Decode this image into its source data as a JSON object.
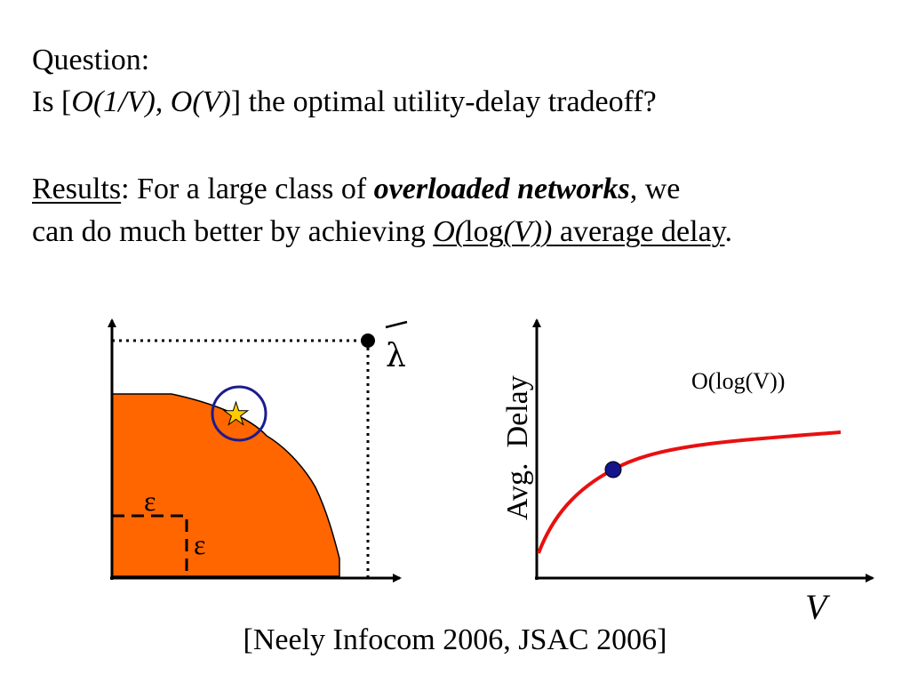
{
  "text": {
    "question_label": "Question:",
    "q_is": "Is [",
    "q_expr": "O(1/V), O(V)",
    "q_rest": "] the optimal utility-delay tradeoff?",
    "results_label": "Results",
    "results_colon": ":  For a large class of ",
    "results_emph": "overloaded networks",
    "results_end": ", we",
    "line2_start": "can do much better by achieving ",
    "line2_o": "O(",
    "line2_log": "log",
    "line2_v": "(V))",
    "line2_avg": " average delay",
    "line2_period": "."
  },
  "left_diagram": {
    "lambda_label": "λ",
    "epsilon_1": "ε",
    "epsilon_2": "ε",
    "region_color": "#ff6600",
    "circle_color": "#1c1c8c",
    "star_color": "#ffcc00"
  },
  "right_diagram": {
    "ylabel": "Avg.  Delay",
    "xlabel": "V",
    "curve_label": "O(log(V))",
    "curve_color": "#e81010",
    "marker_color": "#14148c"
  },
  "citation": "[Neely Infocom 2006, JSAC 2006]"
}
